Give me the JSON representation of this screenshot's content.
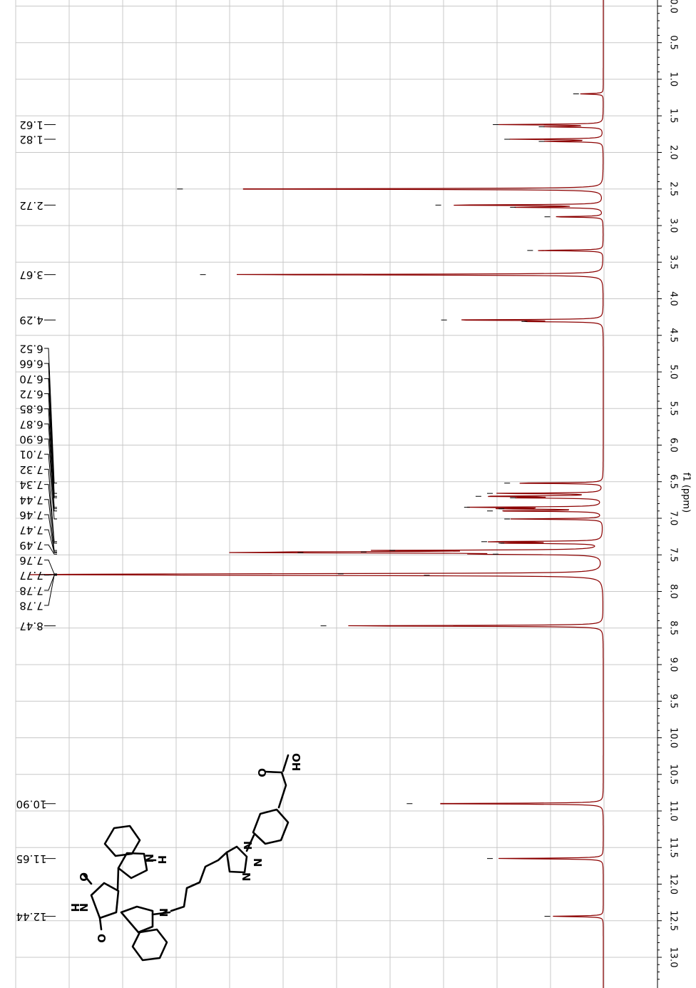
{
  "chart_data": {
    "type": "line",
    "title": "",
    "xlabel": "f1 (ppm)",
    "ylabel": "",
    "xlim": [
      0,
      13.3
    ],
    "x_ticks": [
      "0.0",
      "0.5",
      "1.0",
      "1.5",
      "2.0",
      "2.5",
      "3.0",
      "3.5",
      "4.0",
      "4.5",
      "5.0",
      "5.5",
      "6.0",
      "6.5",
      "7.0",
      "7.5",
      "8.0",
      "8.5",
      "9.0",
      "9.5",
      "10.0",
      "10.5",
      "11.0",
      "11.5",
      "12.0",
      "12.5",
      "13.0"
    ],
    "x_tick_values": [
      0,
      0.5,
      1,
      1.5,
      2,
      2.5,
      3,
      3.5,
      4,
      4.5,
      5,
      5.5,
      6,
      6.5,
      7,
      7.5,
      8,
      8.5,
      9,
      9.5,
      10,
      10.5,
      11,
      11.5,
      12,
      12.5,
      13
    ],
    "grid": true,
    "peak_labels": [
      "1.62",
      "1.82",
      "2.72",
      "3.67",
      "4.29",
      "6.52",
      "6.66",
      "6.70",
      "6.72",
      "6.85",
      "6.87",
      "6.90",
      "7.01",
      "7.32",
      "7.34",
      "7.44",
      "7.46",
      "7.47",
      "7.49",
      "7.76",
      "7.77",
      "7.78",
      "7.78",
      "8.47",
      "10.90",
      "11.65",
      "12.44"
    ],
    "single_labels": [
      {
        "ppm": 1.62,
        "text": "1.62"
      },
      {
        "ppm": 1.82,
        "text": "1.82"
      },
      {
        "ppm": 2.72,
        "text": "2.72"
      },
      {
        "ppm": 3.67,
        "text": "3.67"
      },
      {
        "ppm": 4.29,
        "text": "4.29"
      },
      {
        "ppm": 8.47,
        "text": "8.47"
      },
      {
        "ppm": 10.9,
        "text": "10.90"
      },
      {
        "ppm": 11.65,
        "text": "11.65"
      },
      {
        "ppm": 12.44,
        "text": "12.44"
      }
    ],
    "group_labels": [
      {
        "ppm": 6.52,
        "text": "6.52"
      },
      {
        "ppm": 6.66,
        "text": "6.66"
      },
      {
        "ppm": 6.7,
        "text": "6.70"
      },
      {
        "ppm": 6.72,
        "text": "6.72"
      },
      {
        "ppm": 6.85,
        "text": "6.85"
      },
      {
        "ppm": 6.87,
        "text": "6.87"
      },
      {
        "ppm": 6.9,
        "text": "6.90"
      },
      {
        "ppm": 7.01,
        "text": "7.01"
      },
      {
        "ppm": 7.32,
        "text": "7.32"
      },
      {
        "ppm": 7.34,
        "text": "7.34"
      },
      {
        "ppm": 7.44,
        "text": "7.44"
      },
      {
        "ppm": 7.46,
        "text": "7.46"
      },
      {
        "ppm": 7.47,
        "text": "7.47"
      },
      {
        "ppm": 7.49,
        "text": "7.49"
      },
      {
        "ppm": 7.76,
        "text": "7.76"
      },
      {
        "ppm": 7.77,
        "text": "7.77"
      },
      {
        "ppm": 7.78,
        "text": "7.78"
      },
      {
        "ppm": 7.78,
        "text": "7.78"
      }
    ],
    "peaks": [
      {
        "ppm": 1.2,
        "intensity": 0.04
      },
      {
        "ppm": 1.62,
        "intensity": 0.18
      },
      {
        "ppm": 1.65,
        "intensity": 0.1
      },
      {
        "ppm": 1.82,
        "intensity": 0.16
      },
      {
        "ppm": 1.85,
        "intensity": 0.1
      },
      {
        "ppm": 2.5,
        "intensity": 0.73
      },
      {
        "ppm": 2.72,
        "intensity": 0.28
      },
      {
        "ppm": 2.75,
        "intensity": 0.15
      },
      {
        "ppm": 2.88,
        "intensity": 0.09
      },
      {
        "ppm": 3.34,
        "intensity": 0.12
      },
      {
        "ppm": 3.67,
        "intensity": 0.69
      },
      {
        "ppm": 4.29,
        "intensity": 0.27
      },
      {
        "ppm": 4.31,
        "intensity": 0.13
      },
      {
        "ppm": 6.52,
        "intensity": 0.16
      },
      {
        "ppm": 6.66,
        "intensity": 0.19
      },
      {
        "ppm": 6.7,
        "intensity": 0.21
      },
      {
        "ppm": 6.72,
        "intensity": 0.15
      },
      {
        "ppm": 6.85,
        "intensity": 0.23
      },
      {
        "ppm": 6.87,
        "intensity": 0.17
      },
      {
        "ppm": 6.9,
        "intensity": 0.19
      },
      {
        "ppm": 7.01,
        "intensity": 0.16
      },
      {
        "ppm": 7.32,
        "intensity": 0.2
      },
      {
        "ppm": 7.34,
        "intensity": 0.17
      },
      {
        "ppm": 7.44,
        "intensity": 0.36
      },
      {
        "ppm": 7.46,
        "intensity": 0.41
      },
      {
        "ppm": 7.47,
        "intensity": 0.52
      },
      {
        "ppm": 7.49,
        "intensity": 0.18
      },
      {
        "ppm": 7.76,
        "intensity": 0.45
      },
      {
        "ppm": 7.77,
        "intensity": 0.97
      },
      {
        "ppm": 7.78,
        "intensity": 0.3
      },
      {
        "ppm": 8.47,
        "intensity": 0.48
      },
      {
        "ppm": 10.9,
        "intensity": 0.33
      },
      {
        "ppm": 11.65,
        "intensity": 0.19
      },
      {
        "ppm": 12.44,
        "intensity": 0.09
      }
    ]
  },
  "structure": {
    "atom_labels": [
      "OH",
      "O",
      "N",
      "N",
      "N",
      "O",
      "O",
      "N",
      "H",
      "N",
      "H"
    ]
  },
  "colors": {
    "spectrum": "#8b0000",
    "grid": "#c8c8c8",
    "labels": "#000000"
  }
}
